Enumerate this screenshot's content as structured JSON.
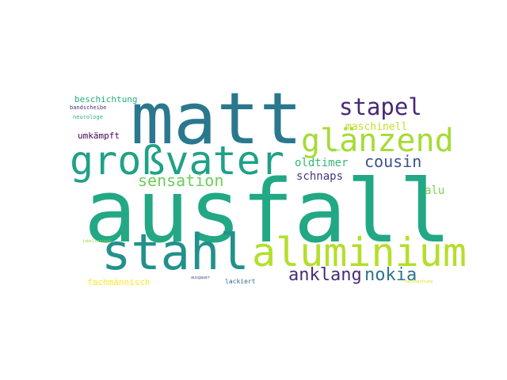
{
  "words": [
    {
      "text": "ausfall",
      "color": "#22a884"
    },
    {
      "text": "matt",
      "color": "#2a788e"
    },
    {
      "text": "stahl",
      "color": "#21918c"
    },
    {
      "text": "großvater",
      "color": "#1fa187"
    },
    {
      "text": "aluminium",
      "color": "#b5de2b"
    },
    {
      "text": "glänzend",
      "color": "#a5db36"
    },
    {
      "text": "stapel",
      "color": "#482878"
    },
    {
      "text": "sensation",
      "color": "#6ccd5a"
    },
    {
      "text": "cousin",
      "color": "#3b528b"
    },
    {
      "text": "anklang",
      "color": "#472d7b"
    },
    {
      "text": "nokia",
      "color": "#2c728e"
    },
    {
      "text": "oldtimer",
      "color": "#35b779"
    },
    {
      "text": "maschinell",
      "color": "#c0df25"
    },
    {
      "text": "schnaps",
      "color": "#443983"
    },
    {
      "text": "alu",
      "color": "#7ad151"
    },
    {
      "text": "beschichtung",
      "color": "#27ad81"
    },
    {
      "text": "umkämpft",
      "color": "#440154"
    },
    {
      "text": "fachmännisch",
      "color": "#fde725"
    },
    {
      "text": "bandscheibe",
      "color": "#46327e"
    },
    {
      "text": "neurologe",
      "color": "#2db27d"
    },
    {
      "text": "lackiert",
      "color": "#31688e"
    },
    {
      "text": "ausgauer",
      "color": "#3e4989"
    },
    {
      "text": "glas",
      "color": "#8fd744"
    },
    {
      "text": "tabellarisch",
      "color": "#9dd93b"
    },
    {
      "text": "fachhandlung",
      "color": "#d8e219"
    }
  ]
}
